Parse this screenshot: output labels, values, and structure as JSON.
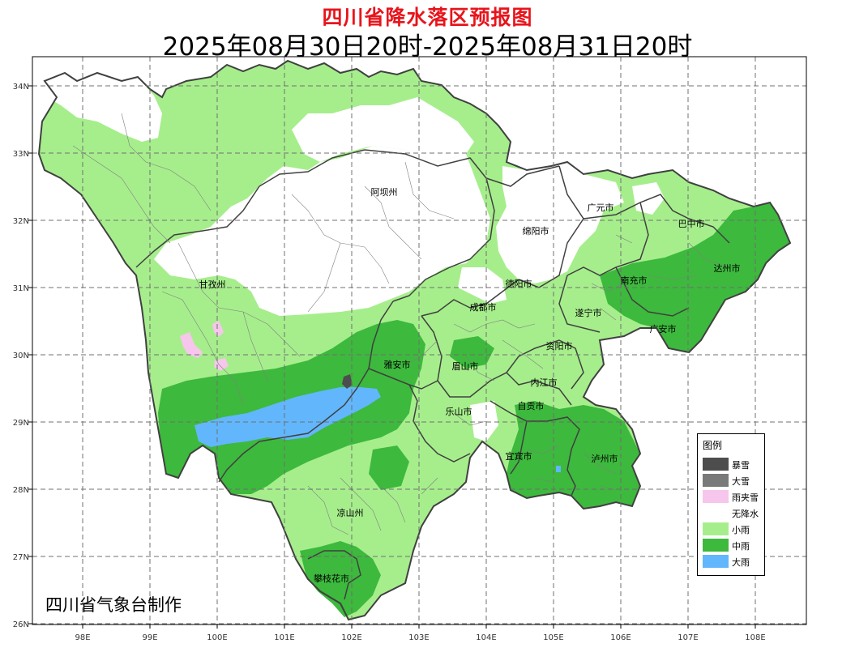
{
  "header": {
    "title": "四川省降水落区预报图",
    "subtitle": "2025年08月30日20时-2025年08月31日20时"
  },
  "credit": "四川省气象台制作",
  "axes": {
    "lon_ticks": [
      "98E",
      "99E",
      "100E",
      "101E",
      "102E",
      "103E",
      "104E",
      "105E",
      "106E",
      "107E",
      "108E"
    ],
    "lat_ticks": [
      "34N",
      "33N",
      "32N",
      "31N",
      "30N",
      "29N",
      "28N",
      "27N",
      "26N"
    ],
    "lon_range": [
      97.3,
      108.7
    ],
    "lat_range": [
      26.0,
      34.45
    ],
    "grid": true
  },
  "cities": [
    "阿坝州",
    "广元市",
    "巴中市",
    "绵阳市",
    "达州市",
    "甘孜州",
    "德阳市",
    "南充市",
    "成都市",
    "遂宁市",
    "广安市",
    "资阳市",
    "雅安市",
    "眉山市",
    "内江市",
    "乐山市",
    "自贡市",
    "宜宾市",
    "泸州市",
    "凉山州",
    "攀枝花市"
  ],
  "legend": {
    "title": "图例",
    "items": [
      {
        "label": "暴雪",
        "color": "#4d4d4d"
      },
      {
        "label": "大雪",
        "color": "#7a7a7a"
      },
      {
        "label": "雨夹雪",
        "color": "#f7c6ec"
      },
      {
        "label": "无降水",
        "color": "#ffffff"
      },
      {
        "label": "小雨",
        "color": "#a6ee8c"
      },
      {
        "label": "中雨",
        "color": "#3db93d"
      },
      {
        "label": "大雨",
        "color": "#62b6fc"
      }
    ]
  }
}
